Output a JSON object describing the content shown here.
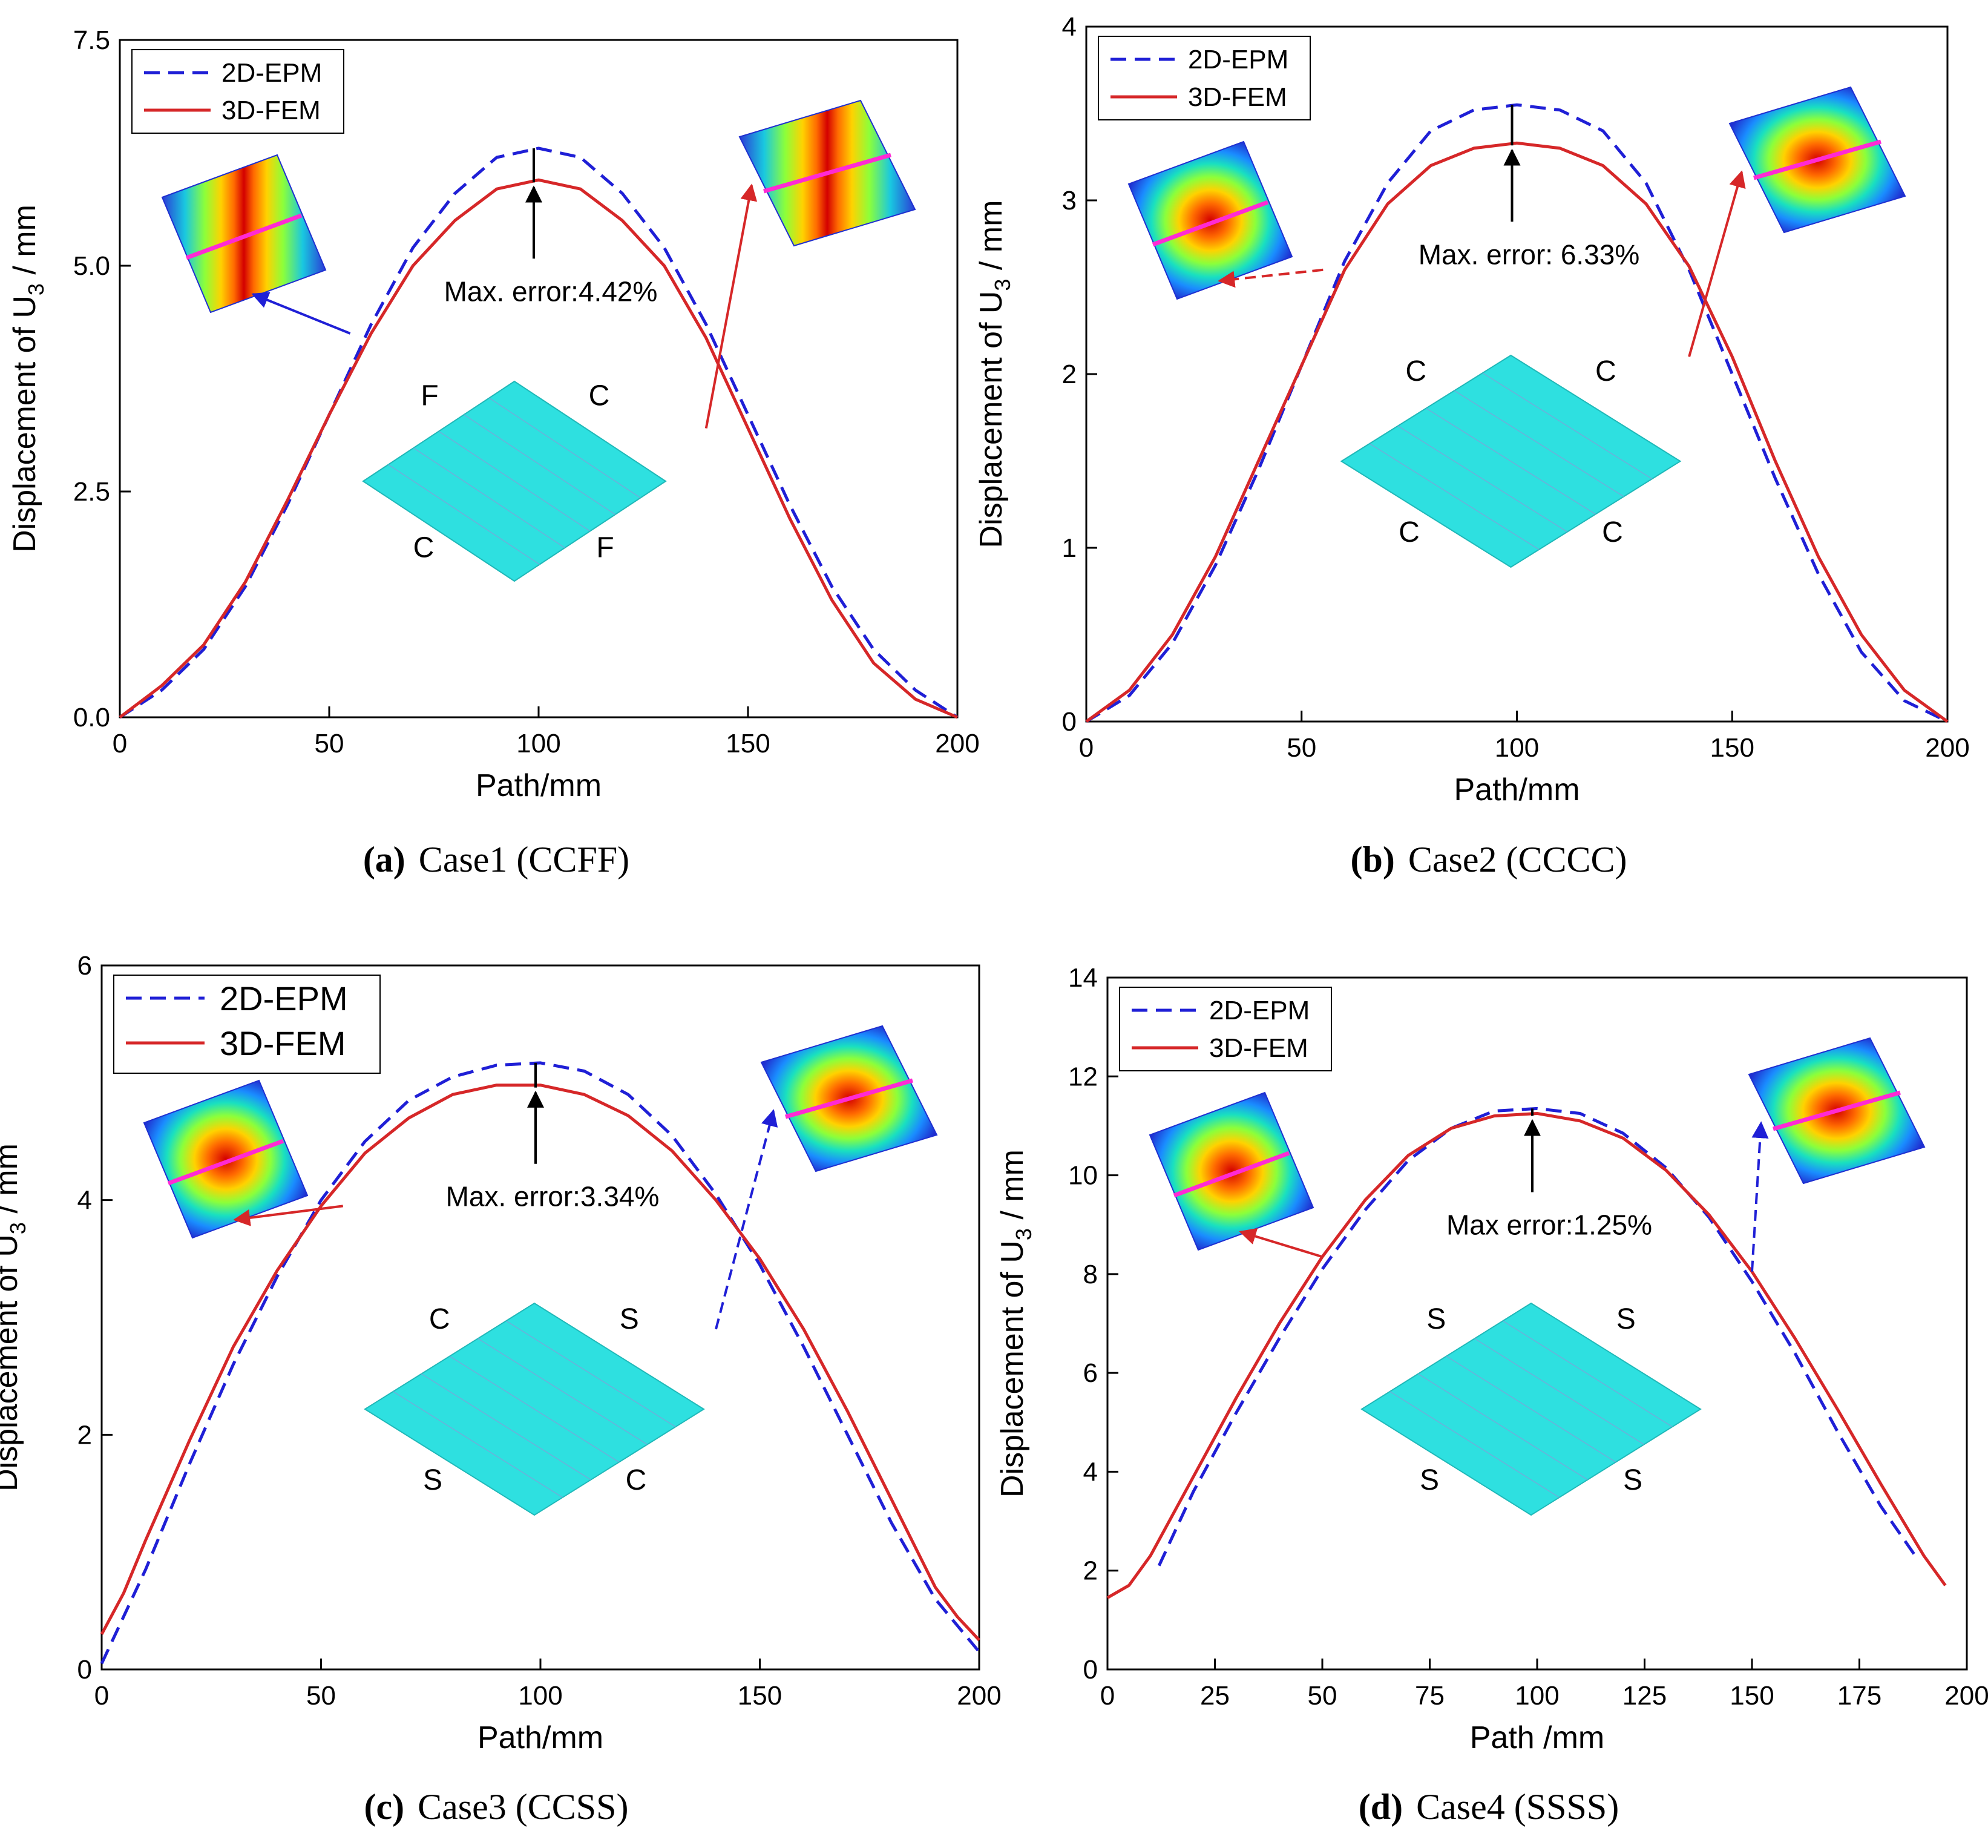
{
  "chart_data": [
    {
      "type": "line",
      "panel": "a",
      "caption_label": "(a)",
      "caption_text": "Case1 (CCFF)",
      "xlabel": "Path/mm",
      "ylabel_main": "Displacement of U",
      "ylabel_sub": "3",
      "ylabel_unit": " / mm",
      "xlim": [
        0,
        200
      ],
      "ylim": [
        0,
        7.5
      ],
      "xticks": [
        "0",
        "50",
        "100",
        "150",
        "200"
      ],
      "yticks": [
        "0.0",
        "2.5",
        "5.0",
        "7.5"
      ],
      "ytick_values": [
        0,
        2.5,
        5.0,
        7.5
      ],
      "xtick_values": [
        0,
        50,
        100,
        150,
        200
      ],
      "annotation": "Max. error:4.42%",
      "bc_labels": [
        "F",
        "C",
        "C",
        "F"
      ],
      "series": [
        {
          "name": "2D-EPM",
          "style": "dashed",
          "color": "#1f1fd6",
          "x": [
            0,
            10,
            20,
            30,
            40,
            50,
            60,
            70,
            80,
            90,
            100,
            110,
            120,
            130,
            140,
            150,
            160,
            170,
            180,
            190,
            200
          ],
          "y": [
            0,
            0.3,
            0.75,
            1.45,
            2.35,
            3.35,
            4.35,
            5.2,
            5.8,
            6.2,
            6.3,
            6.2,
            5.8,
            5.2,
            4.35,
            3.35,
            2.35,
            1.45,
            0.75,
            0.3,
            0
          ]
        },
        {
          "name": "3D-FEM",
          "style": "solid",
          "color": "#d62728",
          "x": [
            0,
            10,
            20,
            30,
            40,
            50,
            60,
            70,
            80,
            90,
            100,
            110,
            120,
            130,
            140,
            150,
            160,
            170,
            180,
            190,
            200
          ],
          "y": [
            0,
            0.35,
            0.8,
            1.5,
            2.4,
            3.35,
            4.25,
            5.0,
            5.5,
            5.85,
            5.95,
            5.85,
            5.5,
            5.0,
            4.2,
            3.2,
            2.2,
            1.3,
            0.6,
            0.2,
            0
          ]
        }
      ]
    },
    {
      "type": "line",
      "panel": "b",
      "caption_label": "(b)",
      "caption_text": "Case2 (CCCC)",
      "xlabel": "Path/mm",
      "ylabel_main": "Displacement of U",
      "ylabel_sub": "3",
      "ylabel_unit": " / mm",
      "xlim": [
        0,
        200
      ],
      "ylim": [
        0,
        4
      ],
      "xticks": [
        "0",
        "50",
        "100",
        "150",
        "200"
      ],
      "yticks": [
        "0",
        "1",
        "2",
        "3",
        "4"
      ],
      "ytick_values": [
        0,
        1,
        2,
        3,
        4
      ],
      "xtick_values": [
        0,
        50,
        100,
        150,
        200
      ],
      "annotation": "Max. error: 6.33%",
      "bc_labels": [
        "C",
        "C",
        "C",
        "C"
      ],
      "series": [
        {
          "name": "2D-EPM",
          "style": "dashed",
          "color": "#1f1fd6",
          "x": [
            0,
            10,
            20,
            30,
            40,
            50,
            60,
            70,
            80,
            90,
            100,
            110,
            120,
            130,
            140,
            150,
            160,
            170,
            180,
            190,
            200
          ],
          "y": [
            0,
            0.15,
            0.45,
            0.9,
            1.45,
            2.05,
            2.65,
            3.1,
            3.4,
            3.52,
            3.55,
            3.52,
            3.4,
            3.1,
            2.6,
            2.0,
            1.4,
            0.85,
            0.4,
            0.12,
            0
          ]
        },
        {
          "name": "3D-FEM",
          "style": "solid",
          "color": "#d62728",
          "x": [
            0,
            10,
            20,
            30,
            40,
            50,
            60,
            70,
            80,
            90,
            100,
            110,
            120,
            130,
            140,
            150,
            160,
            170,
            180,
            190,
            200
          ],
          "y": [
            0,
            0.18,
            0.5,
            0.95,
            1.5,
            2.05,
            2.6,
            2.98,
            3.2,
            3.3,
            3.33,
            3.3,
            3.2,
            2.98,
            2.62,
            2.1,
            1.5,
            0.95,
            0.5,
            0.18,
            0
          ]
        }
      ]
    },
    {
      "type": "line",
      "panel": "c",
      "caption_label": "(c)",
      "caption_text": "Case3 (CCSS)",
      "xlabel": "Path/mm",
      "ylabel_main": "Displacement of U",
      "ylabel_sub": "3",
      "ylabel_unit": " / mm",
      "xlim": [
        0,
        200
      ],
      "ylim": [
        0,
        6
      ],
      "xticks": [
        "0",
        "50",
        "100",
        "150",
        "200"
      ],
      "yticks": [
        "0",
        "2",
        "4",
        "6"
      ],
      "ytick_values": [
        0,
        2,
        4,
        6
      ],
      "xtick_values": [
        0,
        50,
        100,
        150,
        200
      ],
      "annotation": "Max. error:3.34%",
      "bc_labels": [
        "C",
        "S",
        "S",
        "C"
      ],
      "series": [
        {
          "name": "2D-EPM",
          "style": "dashed",
          "color": "#1f1fd6",
          "x": [
            0,
            10,
            20,
            30,
            40,
            50,
            60,
            70,
            80,
            90,
            100,
            110,
            120,
            130,
            140,
            150,
            160,
            170,
            180,
            190,
            200
          ],
          "y": [
            0.05,
            0.85,
            1.75,
            2.6,
            3.35,
            4.0,
            4.5,
            4.85,
            5.05,
            5.15,
            5.17,
            5.1,
            4.9,
            4.55,
            4.05,
            3.45,
            2.75,
            2.0,
            1.25,
            0.6,
            0.15
          ]
        },
        {
          "name": "3D-FEM",
          "style": "solid",
          "color": "#d62728",
          "x": [
            0,
            5,
            10,
            20,
            30,
            40,
            50,
            60,
            70,
            80,
            90,
            100,
            110,
            120,
            130,
            140,
            150,
            160,
            170,
            180,
            190,
            195,
            200
          ],
          "y": [
            0.3,
            0.65,
            1.1,
            1.95,
            2.75,
            3.4,
            3.95,
            4.4,
            4.7,
            4.9,
            4.98,
            4.98,
            4.9,
            4.72,
            4.42,
            4.0,
            3.5,
            2.9,
            2.2,
            1.45,
            0.7,
            0.45,
            0.25
          ]
        }
      ]
    },
    {
      "type": "line",
      "panel": "d",
      "caption_label": "(d)",
      "caption_text": "Case4 (SSSS)",
      "xlabel": "Path /mm",
      "ylabel_main": "Displacement of U",
      "ylabel_sub": "3",
      "ylabel_unit": " / mm",
      "xlim": [
        0,
        200
      ],
      "ylim": [
        0,
        14
      ],
      "xticks": [
        "0",
        "25",
        "50",
        "75",
        "100",
        "125",
        "150",
        "175",
        "200"
      ],
      "yticks": [
        "0",
        "2",
        "4",
        "6",
        "8",
        "10",
        "12",
        "14"
      ],
      "ytick_values": [
        0,
        2,
        4,
        6,
        8,
        10,
        12,
        14
      ],
      "xtick_values": [
        0,
        25,
        50,
        75,
        100,
        125,
        150,
        175,
        200
      ],
      "annotation": "Max error:1.25%",
      "bc_labels": [
        "S",
        "S",
        "S",
        "S"
      ],
      "series": [
        {
          "name": "2D-EPM",
          "style": "dashed",
          "color": "#1f1fd6",
          "x": [
            12,
            20,
            30,
            40,
            50,
            60,
            70,
            80,
            90,
            100,
            110,
            120,
            130,
            140,
            150,
            160,
            170,
            180,
            188
          ],
          "y": [
            2.1,
            3.6,
            5.2,
            6.7,
            8.1,
            9.3,
            10.3,
            10.95,
            11.3,
            11.35,
            11.25,
            10.85,
            10.15,
            9.15,
            7.85,
            6.4,
            4.8,
            3.3,
            2.3
          ]
        },
        {
          "name": "3D-FEM",
          "style": "solid",
          "color": "#d62728",
          "x": [
            0,
            5,
            10,
            20,
            30,
            40,
            50,
            60,
            70,
            80,
            90,
            100,
            110,
            120,
            130,
            140,
            150,
            160,
            170,
            180,
            190,
            195
          ],
          "y": [
            1.45,
            1.7,
            2.3,
            3.9,
            5.5,
            7.0,
            8.35,
            9.5,
            10.4,
            10.95,
            11.2,
            11.25,
            11.1,
            10.75,
            10.1,
            9.2,
            8.05,
            6.7,
            5.25,
            3.75,
            2.3,
            1.7
          ]
        }
      ]
    }
  ]
}
